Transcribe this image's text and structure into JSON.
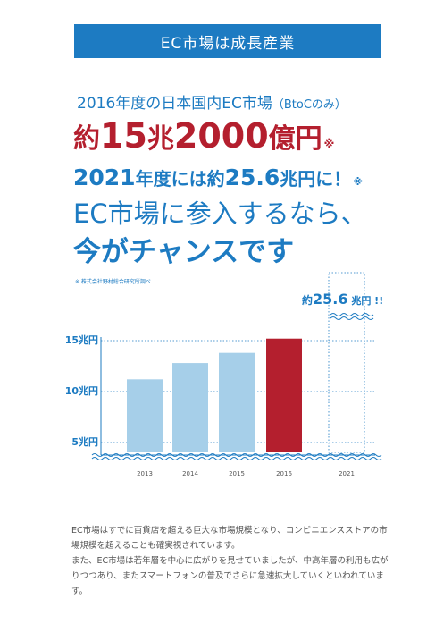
{
  "banner": "EC市場は成長産業",
  "headline": {
    "line1_main": "2016年度の日本国内EC市場",
    "line1_paren": "（BtoCのみ）",
    "line2_prefix": "約",
    "line2_num": "15",
    "line2_unit1": "兆",
    "line2_num2": "2000",
    "line2_unit2": "億円",
    "line2_note": "※",
    "line3_year": "2021",
    "line3_text1": "年度には約",
    "line3_num": "25.6",
    "line3_text2": "兆円に！",
    "line3_note": "※",
    "line4": "EC市場に参入するなら、",
    "line5": "今がチャンスです"
  },
  "source_note": "※ 株式会社野村総合研究所調べ",
  "chart_data": {
    "type": "bar",
    "categories": [
      "2013",
      "2014",
      "2015",
      "2016",
      "2021"
    ],
    "values": [
      11.2,
      12.8,
      13.8,
      15.2,
      25.6
    ],
    "y_ticks": [
      "5兆円",
      "10兆円",
      "15兆円"
    ],
    "y_tick_values": [
      5,
      10,
      15
    ],
    "callout_prefix": "約",
    "callout_value": "25.6",
    "callout_unit": "兆円",
    "callout_suffix": "!!",
    "colors": {
      "past": "#a6cfe9",
      "highlight": "#b41f2e",
      "axis": "#1d7bc2"
    },
    "highlight_category": "2016",
    "projected_category": "2021",
    "axis_break": true
  },
  "body": [
    "EC市場はすでに百貨店を超える巨大な市場規模となり、コンビニエンスストアの市場規模を超えることも確実視されています。",
    "また、EC市場は若年層を中心に広がりを見せていましたが、中高年層の利用も広がりつつあり、またスマートフォンの普及でさらに急速拡大していくといわれています。"
  ]
}
